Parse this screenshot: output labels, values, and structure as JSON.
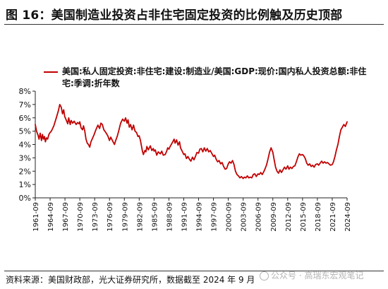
{
  "figure": {
    "title": "图 16：美国制造业投资占非住宅固定投资的比例触及历史顶部"
  },
  "legend": {
    "label": "美国:私人固定投资:非住宅:建设:制造业/美国:GDP:现价:国内私人投资总额:非住宅:季调:折年数",
    "color": "#c00000"
  },
  "chart_data": {
    "type": "line",
    "x_range": [
      1961.75,
      2024.75
    ],
    "ylim": [
      0,
      8
    ],
    "y_ticks": [
      "0%",
      "1%",
      "2%",
      "3%",
      "4%",
      "5%",
      "6%",
      "7%",
      "8%"
    ],
    "x_ticks": [
      {
        "label": "1961-09",
        "x": 1961.75
      },
      {
        "label": "1964-09",
        "x": 1964.75
      },
      {
        "label": "1967-09",
        "x": 1967.75
      },
      {
        "label": "1970-09",
        "x": 1970.75
      },
      {
        "label": "1973-09",
        "x": 1973.75
      },
      {
        "label": "1976-09",
        "x": 1976.75
      },
      {
        "label": "1979-09",
        "x": 1979.75
      },
      {
        "label": "1982-09",
        "x": 1982.75
      },
      {
        "label": "1985-09",
        "x": 1985.75
      },
      {
        "label": "1988-09",
        "x": 1988.75
      },
      {
        "label": "1991-09",
        "x": 1991.75
      },
      {
        "label": "1994-09",
        "x": 1994.75
      },
      {
        "label": "1997-09",
        "x": 1997.75
      },
      {
        "label": "2000-09",
        "x": 2000.75
      },
      {
        "label": "2003-09",
        "x": 2003.75
      },
      {
        "label": "2006-09",
        "x": 2006.75
      },
      {
        "label": "2009-09",
        "x": 2009.75
      },
      {
        "label": "2012-09",
        "x": 2012.75
      },
      {
        "label": "2015-09",
        "x": 2015.75
      },
      {
        "label": "2018-09",
        "x": 2018.75
      },
      {
        "label": "2021-09",
        "x": 2021.75
      },
      {
        "label": "2024-09",
        "x": 2024.75
      }
    ],
    "grid": false,
    "series": [
      {
        "name": "美国:私人固定投资:非住宅:建设:制造业/美国:GDP:现价:国内私人投资总额:非住宅:季调:折年数",
        "color": "#c00000",
        "points": [
          [
            1961.75,
            5.5
          ],
          [
            1962.0,
            5.0
          ],
          [
            1962.3,
            4.7
          ],
          [
            1962.5,
            4.4
          ],
          [
            1962.75,
            4.85
          ],
          [
            1963.0,
            4.3
          ],
          [
            1963.2,
            4.75
          ],
          [
            1963.4,
            4.4
          ],
          [
            1963.6,
            4.6
          ],
          [
            1963.8,
            4.2
          ],
          [
            1964.0,
            4.5
          ],
          [
            1964.25,
            4.4
          ],
          [
            1964.5,
            4.75
          ],
          [
            1964.75,
            4.9
          ],
          [
            1965.0,
            5.0
          ],
          [
            1965.5,
            5.4
          ],
          [
            1966.0,
            6.0
          ],
          [
            1966.4,
            6.5
          ],
          [
            1966.7,
            7.0
          ],
          [
            1967.0,
            6.8
          ],
          [
            1967.25,
            6.3
          ],
          [
            1967.5,
            6.6
          ],
          [
            1967.7,
            6.1
          ],
          [
            1968.0,
            5.85
          ],
          [
            1968.3,
            5.55
          ],
          [
            1968.5,
            6.0
          ],
          [
            1968.8,
            5.5
          ],
          [
            1969.0,
            5.8
          ],
          [
            1969.3,
            5.6
          ],
          [
            1969.6,
            5.75
          ],
          [
            1970.0,
            5.5
          ],
          [
            1970.3,
            5.65
          ],
          [
            1970.6,
            5.55
          ],
          [
            1970.75,
            5.7
          ],
          [
            1971.0,
            5.25
          ],
          [
            1971.3,
            5.1
          ],
          [
            1971.5,
            5.4
          ],
          [
            1971.75,
            5.0
          ],
          [
            1972.0,
            4.4
          ],
          [
            1972.25,
            4.1
          ],
          [
            1972.5,
            4.0
          ],
          [
            1972.75,
            3.8
          ],
          [
            1973.0,
            4.2
          ],
          [
            1973.3,
            4.45
          ],
          [
            1973.6,
            4.7
          ],
          [
            1974.0,
            5.1
          ],
          [
            1974.4,
            5.45
          ],
          [
            1974.75,
            5.2
          ],
          [
            1975.0,
            5.6
          ],
          [
            1975.3,
            5.5
          ],
          [
            1975.6,
            5.1
          ],
          [
            1976.0,
            4.9
          ],
          [
            1976.4,
            4.65
          ],
          [
            1976.75,
            4.3
          ],
          [
            1977.0,
            4.55
          ],
          [
            1977.4,
            4.25
          ],
          [
            1977.75,
            4.0
          ],
          [
            1978.0,
            4.3
          ],
          [
            1978.3,
            4.6
          ],
          [
            1978.6,
            5.0
          ],
          [
            1979.0,
            5.6
          ],
          [
            1979.4,
            5.9
          ],
          [
            1979.75,
            5.75
          ],
          [
            1980.0,
            6.0
          ],
          [
            1980.3,
            5.6
          ],
          [
            1980.5,
            5.85
          ],
          [
            1980.75,
            5.3
          ],
          [
            1981.0,
            5.5
          ],
          [
            1981.3,
            5.1
          ],
          [
            1981.6,
            5.45
          ],
          [
            1981.9,
            5.0
          ],
          [
            1982.2,
            4.9
          ],
          [
            1982.5,
            4.6
          ],
          [
            1982.75,
            4.65
          ],
          [
            1983.0,
            4.3
          ],
          [
            1983.2,
            3.9
          ],
          [
            1983.4,
            3.5
          ],
          [
            1983.6,
            3.25
          ],
          [
            1983.9,
            3.55
          ],
          [
            1984.1,
            3.45
          ],
          [
            1984.3,
            3.85
          ],
          [
            1984.6,
            3.6
          ],
          [
            1985.0,
            3.9
          ],
          [
            1985.3,
            3.55
          ],
          [
            1985.6,
            3.7
          ],
          [
            1985.75,
            3.5
          ],
          [
            1986.0,
            3.6
          ],
          [
            1986.3,
            3.2
          ],
          [
            1986.6,
            3.45
          ],
          [
            1987.0,
            3.3
          ],
          [
            1987.3,
            3.5
          ],
          [
            1987.6,
            3.2
          ],
          [
            1988.0,
            3.25
          ],
          [
            1988.3,
            3.5
          ],
          [
            1988.5,
            3.75
          ],
          [
            1988.75,
            3.65
          ],
          [
            1989.0,
            3.85
          ],
          [
            1989.3,
            4.05
          ],
          [
            1989.6,
            4.25
          ],
          [
            1989.8,
            4.4
          ],
          [
            1990.0,
            4.1
          ],
          [
            1990.3,
            4.35
          ],
          [
            1990.6,
            3.95
          ],
          [
            1990.9,
            4.2
          ],
          [
            1991.1,
            3.75
          ],
          [
            1991.5,
            3.45
          ],
          [
            1991.75,
            3.25
          ],
          [
            1992.0,
            3.3
          ],
          [
            1992.3,
            2.95
          ],
          [
            1992.6,
            3.1
          ],
          [
            1992.9,
            2.9
          ],
          [
            1993.2,
            2.75
          ],
          [
            1993.5,
            3.05
          ],
          [
            1993.8,
            2.85
          ],
          [
            1994.1,
            3.1
          ],
          [
            1994.4,
            3.4
          ],
          [
            1994.75,
            3.35
          ],
          [
            1995.0,
            3.65
          ],
          [
            1995.3,
            3.7
          ],
          [
            1995.6,
            3.45
          ],
          [
            1995.9,
            3.75
          ],
          [
            1996.2,
            3.5
          ],
          [
            1996.5,
            3.7
          ],
          [
            1996.8,
            3.45
          ],
          [
            1997.1,
            3.55
          ],
          [
            1997.4,
            3.35
          ],
          [
            1997.75,
            3.1
          ],
          [
            1998.0,
            3.2
          ],
          [
            1998.3,
            2.9
          ],
          [
            1998.6,
            2.7
          ],
          [
            1998.9,
            2.8
          ],
          [
            1999.2,
            2.55
          ],
          [
            1999.5,
            2.65
          ],
          [
            1999.8,
            2.35
          ],
          [
            2000.1,
            2.15
          ],
          [
            2000.4,
            2.2
          ],
          [
            2000.75,
            2.55
          ],
          [
            2001.0,
            2.7
          ],
          [
            2001.3,
            2.6
          ],
          [
            2001.6,
            2.8
          ],
          [
            2001.9,
            2.5
          ],
          [
            2002.2,
            2.0
          ],
          [
            2002.5,
            1.75
          ],
          [
            2002.8,
            1.65
          ],
          [
            2003.1,
            1.5
          ],
          [
            2003.4,
            1.6
          ],
          [
            2003.75,
            1.45
          ],
          [
            2004.0,
            1.55
          ],
          [
            2004.3,
            1.5
          ],
          [
            2004.6,
            1.65
          ],
          [
            2004.9,
            1.5
          ],
          [
            2005.2,
            1.55
          ],
          [
            2005.5,
            1.5
          ],
          [
            2005.8,
            1.75
          ],
          [
            2006.1,
            1.8
          ],
          [
            2006.4,
            1.6
          ],
          [
            2006.75,
            1.8
          ],
          [
            2007.0,
            1.75
          ],
          [
            2007.3,
            1.9
          ],
          [
            2007.6,
            1.75
          ],
          [
            2007.9,
            1.95
          ],
          [
            2008.2,
            2.2
          ],
          [
            2008.5,
            2.5
          ],
          [
            2008.8,
            2.95
          ],
          [
            2009.1,
            3.45
          ],
          [
            2009.4,
            3.75
          ],
          [
            2009.75,
            3.4
          ],
          [
            2010.0,
            2.9
          ],
          [
            2010.3,
            2.3
          ],
          [
            2010.6,
            2.0
          ],
          [
            2010.9,
            1.85
          ],
          [
            2011.2,
            2.1
          ],
          [
            2011.5,
            1.9
          ],
          [
            2011.8,
            2.1
          ],
          [
            2012.1,
            2.3
          ],
          [
            2012.4,
            2.15
          ],
          [
            2012.75,
            2.4
          ],
          [
            2013.0,
            2.15
          ],
          [
            2013.3,
            2.3
          ],
          [
            2013.6,
            2.2
          ],
          [
            2013.9,
            2.35
          ],
          [
            2014.2,
            2.4
          ],
          [
            2014.5,
            2.7
          ],
          [
            2014.8,
            3.05
          ],
          [
            2015.1,
            3.3
          ],
          [
            2015.4,
            3.2
          ],
          [
            2015.75,
            3.25
          ],
          [
            2016.0,
            3.15
          ],
          [
            2016.3,
            2.95
          ],
          [
            2016.6,
            2.6
          ],
          [
            2016.9,
            2.45
          ],
          [
            2017.2,
            2.55
          ],
          [
            2017.5,
            2.35
          ],
          [
            2017.8,
            2.45
          ],
          [
            2018.1,
            2.3
          ],
          [
            2018.4,
            2.5
          ],
          [
            2018.75,
            2.55
          ],
          [
            2019.0,
            2.45
          ],
          [
            2019.3,
            2.6
          ],
          [
            2019.6,
            2.75
          ],
          [
            2019.9,
            2.6
          ],
          [
            2020.2,
            2.7
          ],
          [
            2020.5,
            2.6
          ],
          [
            2020.8,
            2.65
          ],
          [
            2021.1,
            2.55
          ],
          [
            2021.4,
            2.45
          ],
          [
            2021.75,
            2.5
          ],
          [
            2022.0,
            2.7
          ],
          [
            2022.3,
            3.1
          ],
          [
            2022.6,
            3.6
          ],
          [
            2022.9,
            4.0
          ],
          [
            2023.2,
            4.6
          ],
          [
            2023.5,
            5.1
          ],
          [
            2023.8,
            5.3
          ],
          [
            2024.1,
            5.5
          ],
          [
            2024.4,
            5.35
          ],
          [
            2024.75,
            5.7
          ]
        ]
      }
    ]
  },
  "footer": {
    "source": "资料来源：美国财政部，光大证券研究所，数据截至 2024 年 9 月",
    "watermark": "公众号 · 高瑞东宏观笔记"
  }
}
